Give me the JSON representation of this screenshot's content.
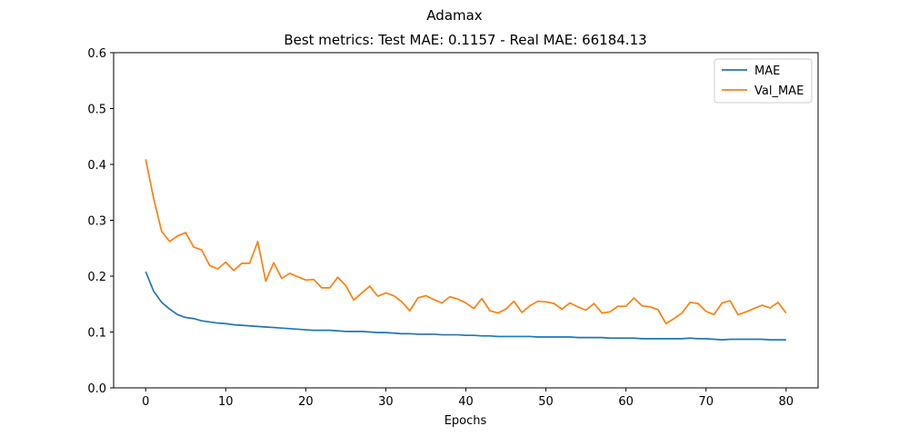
{
  "chart_data": {
    "type": "line",
    "suptitle": "Adamax",
    "title": "Best metrics: Test MAE: 0.1157 - Real MAE: 66184.13",
    "xlabel": "Epochs",
    "ylabel": "",
    "xlim": [
      -4,
      84
    ],
    "ylim": [
      0.0,
      0.6
    ],
    "xticks": [
      0,
      10,
      20,
      30,
      40,
      50,
      60,
      70,
      80
    ],
    "yticks": [
      0.0,
      0.1,
      0.2,
      0.3,
      0.4,
      0.5,
      0.6
    ],
    "grid": false,
    "legend": "top-right",
    "x": [
      0,
      1,
      2,
      3,
      4,
      5,
      6,
      7,
      8,
      9,
      10,
      11,
      12,
      13,
      14,
      15,
      16,
      17,
      18,
      19,
      20,
      21,
      22,
      23,
      24,
      25,
      26,
      27,
      28,
      29,
      30,
      31,
      32,
      33,
      34,
      35,
      36,
      37,
      38,
      39,
      40,
      41,
      42,
      43,
      44,
      45,
      46,
      47,
      48,
      49,
      50,
      51,
      52,
      53,
      54,
      55,
      56,
      57,
      58,
      59,
      60,
      61,
      62,
      63,
      64,
      65,
      66,
      67,
      68,
      69,
      70,
      71,
      72,
      73,
      74,
      75,
      76,
      77,
      78,
      79,
      80
    ],
    "series": [
      {
        "name": "MAE",
        "color": "#1f77b4",
        "values": [
          0.208,
          0.173,
          0.153,
          0.141,
          0.131,
          0.126,
          0.124,
          0.12,
          0.118,
          0.116,
          0.115,
          0.113,
          0.112,
          0.111,
          0.11,
          0.109,
          0.108,
          0.107,
          0.106,
          0.105,
          0.104,
          0.103,
          0.103,
          0.103,
          0.102,
          0.101,
          0.101,
          0.101,
          0.1,
          0.099,
          0.099,
          0.098,
          0.097,
          0.097,
          0.096,
          0.096,
          0.096,
          0.095,
          0.095,
          0.095,
          0.094,
          0.094,
          0.093,
          0.093,
          0.092,
          0.092,
          0.092,
          0.092,
          0.092,
          0.091,
          0.091,
          0.091,
          0.091,
          0.091,
          0.09,
          0.09,
          0.09,
          0.09,
          0.089,
          0.089,
          0.089,
          0.089,
          0.088,
          0.088,
          0.088,
          0.088,
          0.088,
          0.088,
          0.089,
          0.088,
          0.088,
          0.087,
          0.086,
          0.087,
          0.087,
          0.087,
          0.087,
          0.087,
          0.086,
          0.086,
          0.086
        ]
      },
      {
        "name": "Val_MAE",
        "color": "#ff7f0e",
        "values": [
          0.409,
          0.339,
          0.28,
          0.262,
          0.272,
          0.278,
          0.252,
          0.247,
          0.219,
          0.213,
          0.225,
          0.21,
          0.223,
          0.223,
          0.262,
          0.191,
          0.224,
          0.196,
          0.205,
          0.199,
          0.193,
          0.194,
          0.179,
          0.179,
          0.198,
          0.183,
          0.157,
          0.17,
          0.182,
          0.164,
          0.17,
          0.165,
          0.154,
          0.138,
          0.161,
          0.165,
          0.158,
          0.152,
          0.163,
          0.159,
          0.152,
          0.142,
          0.16,
          0.138,
          0.134,
          0.141,
          0.155,
          0.135,
          0.147,
          0.155,
          0.154,
          0.151,
          0.141,
          0.152,
          0.145,
          0.139,
          0.151,
          0.134,
          0.136,
          0.146,
          0.146,
          0.161,
          0.147,
          0.145,
          0.14,
          0.115,
          0.124,
          0.134,
          0.153,
          0.151,
          0.137,
          0.131,
          0.152,
          0.156,
          0.131,
          0.136,
          0.142,
          0.148,
          0.143,
          0.153,
          0.134
        ]
      }
    ]
  }
}
